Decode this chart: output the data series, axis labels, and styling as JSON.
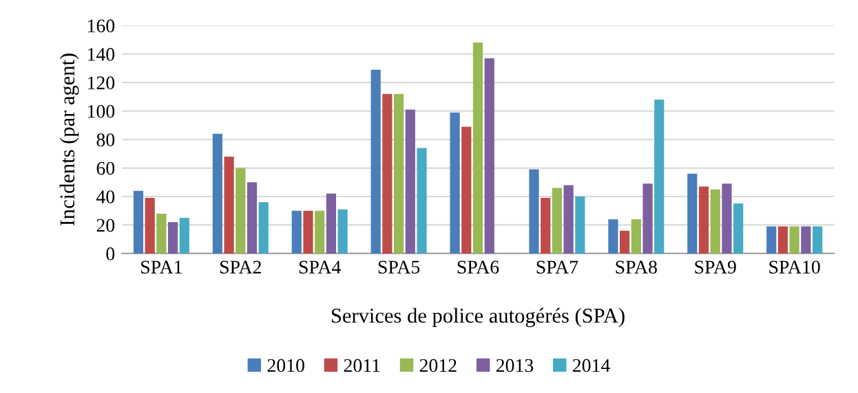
{
  "chart_data": {
    "type": "bar",
    "xlabel": "Services de police autogérés (SPA)",
    "ylabel": "Incidents (par agent)",
    "categories": [
      "SPA1",
      "SPA2",
      "SPA4",
      "SPA5",
      "SPA6",
      "SPA7",
      "SPA8",
      "SPA9",
      "SPA10"
    ],
    "series": [
      {
        "name": "2010",
        "color": "#4a7ebb",
        "values": [
          44,
          84,
          30,
          129,
          99,
          59,
          24,
          56,
          19
        ]
      },
      {
        "name": "2011",
        "color": "#be4b48",
        "values": [
          39,
          68,
          30,
          112,
          89,
          39,
          16,
          47,
          19
        ]
      },
      {
        "name": "2012",
        "color": "#98b954",
        "values": [
          28,
          60,
          30,
          112,
          148,
          46,
          24,
          45,
          19
        ]
      },
      {
        "name": "2013",
        "color": "#7d60a0",
        "values": [
          22,
          50,
          42,
          101,
          137,
          48,
          49,
          49,
          19
        ]
      },
      {
        "name": "2014",
        "color": "#46aac5",
        "values": [
          25,
          36,
          31,
          74,
          null,
          40,
          108,
          35,
          19
        ]
      }
    ],
    "ylim": [
      0,
      160
    ],
    "yticks": [
      0,
      20,
      40,
      60,
      80,
      100,
      120,
      140,
      160
    ],
    "grid": "y",
    "legend": "bottom"
  }
}
